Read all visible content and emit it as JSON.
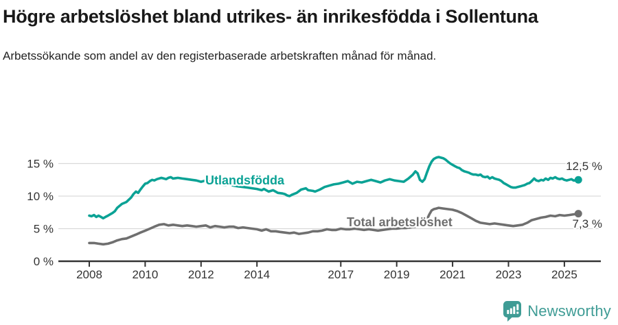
{
  "chart_data": {
    "type": "line",
    "title": "Högre arbetslöshet bland utrikes- än inrikesfödda i Sollentuna",
    "subtitle": "Arbetssökande som andel av den registerbaserade arbetskraften månad för månad.",
    "grid": "horizontal",
    "legend_position": "inline-labels",
    "ylim": [
      0,
      17
    ],
    "xlim": [
      2006.9,
      2026.3
    ],
    "y_ticks": [
      {
        "label": "0 %",
        "value": 0
      },
      {
        "label": "5 %",
        "value": 5
      },
      {
        "label": "10 %",
        "value": 10
      },
      {
        "label": "15 %",
        "value": 15
      }
    ],
    "x_ticks": [
      {
        "label": "2008",
        "year": 2008
      },
      {
        "label": "2010",
        "year": 2010
      },
      {
        "label": "2012",
        "year": 2012
      },
      {
        "label": "2014",
        "year": 2014
      },
      {
        "label": "2017",
        "year": 2017
      },
      {
        "label": "2019",
        "year": 2019
      },
      {
        "label": "2021",
        "year": 2021
      },
      {
        "label": "2023",
        "year": 2023
      },
      {
        "label": "2025",
        "year": 2025
      }
    ],
    "series": [
      {
        "name": "Utlandsfödda",
        "color": "#0ba295",
        "end_label": "12,5 %",
        "end_value": 12.5,
        "points": [
          [
            2008,
            7
          ],
          [
            2008.08,
            6.9
          ],
          [
            2008.17,
            7.1
          ],
          [
            2008.25,
            6.8
          ],
          [
            2008.33,
            7
          ],
          [
            2008.42,
            6.8
          ],
          [
            2008.5,
            6.6
          ],
          [
            2008.58,
            6.8
          ],
          [
            2008.67,
            7
          ],
          [
            2008.75,
            7.2
          ],
          [
            2008.83,
            7.4
          ],
          [
            2008.92,
            7.7
          ],
          [
            2009,
            8.2
          ],
          [
            2009.17,
            8.8
          ],
          [
            2009.33,
            9.1
          ],
          [
            2009.5,
            9.8
          ],
          [
            2009.58,
            10.3
          ],
          [
            2009.67,
            10.7
          ],
          [
            2009.75,
            10.5
          ],
          [
            2009.83,
            11
          ],
          [
            2009.92,
            11.5
          ],
          [
            2010,
            11.9
          ],
          [
            2010.08,
            12
          ],
          [
            2010.17,
            12.3
          ],
          [
            2010.25,
            12.5
          ],
          [
            2010.33,
            12.4
          ],
          [
            2010.42,
            12.6
          ],
          [
            2010.58,
            12.8
          ],
          [
            2010.67,
            12.7
          ],
          [
            2010.75,
            12.6
          ],
          [
            2010.83,
            12.8
          ],
          [
            2010.92,
            12.9
          ],
          [
            2011,
            12.7
          ],
          [
            2011.17,
            12.8
          ],
          [
            2011.33,
            12.7
          ],
          [
            2011.5,
            12.6
          ],
          [
            2011.67,
            12.5
          ],
          [
            2011.83,
            12.4
          ],
          [
            2012,
            12.2
          ],
          [
            2012.17,
            12.4
          ],
          [
            2012.33,
            12.2
          ],
          [
            2012.5,
            12
          ],
          [
            2012.67,
            11.9
          ],
          [
            2012.83,
            11.7
          ],
          [
            2013,
            11.8
          ],
          [
            2013.17,
            11.6
          ],
          [
            2013.33,
            11.5
          ],
          [
            2013.5,
            11.4
          ],
          [
            2013.67,
            11.3
          ],
          [
            2013.83,
            11.2
          ],
          [
            2014,
            11.1
          ],
          [
            2014.17,
            10.9
          ],
          [
            2014.25,
            11.1
          ],
          [
            2014.42,
            10.7
          ],
          [
            2014.58,
            10.9
          ],
          [
            2014.75,
            10.5
          ],
          [
            2014.92,
            10.4
          ],
          [
            2015,
            10.3
          ],
          [
            2015.08,
            10.1
          ],
          [
            2015.17,
            10
          ],
          [
            2015.25,
            10.2
          ],
          [
            2015.42,
            10.5
          ],
          [
            2015.58,
            11
          ],
          [
            2015.75,
            11.2
          ],
          [
            2015.83,
            10.9
          ],
          [
            2016,
            10.8
          ],
          [
            2016.08,
            10.7
          ],
          [
            2016.25,
            11
          ],
          [
            2016.42,
            11.4
          ],
          [
            2016.58,
            11.6
          ],
          [
            2016.75,
            11.8
          ],
          [
            2016.92,
            11.9
          ],
          [
            2017.08,
            12.1
          ],
          [
            2017.25,
            12.3
          ],
          [
            2017.42,
            11.9
          ],
          [
            2017.58,
            12.2
          ],
          [
            2017.75,
            12.1
          ],
          [
            2017.92,
            12.3
          ],
          [
            2018.08,
            12.5
          ],
          [
            2018.25,
            12.3
          ],
          [
            2018.42,
            12.1
          ],
          [
            2018.58,
            12.4
          ],
          [
            2018.75,
            12.6
          ],
          [
            2018.92,
            12.4
          ],
          [
            2019.08,
            12.3
          ],
          [
            2019.25,
            12.2
          ],
          [
            2019.42,
            12.7
          ],
          [
            2019.58,
            13.3
          ],
          [
            2019.67,
            13.8
          ],
          [
            2019.75,
            13.5
          ],
          [
            2019.83,
            12.5
          ],
          [
            2019.92,
            12.2
          ],
          [
            2020,
            12.6
          ],
          [
            2020.08,
            13.6
          ],
          [
            2020.17,
            14.6
          ],
          [
            2020.25,
            15.3
          ],
          [
            2020.33,
            15.7
          ],
          [
            2020.42,
            15.9
          ],
          [
            2020.5,
            16
          ],
          [
            2020.58,
            15.9
          ],
          [
            2020.67,
            15.8
          ],
          [
            2020.75,
            15.6
          ],
          [
            2020.83,
            15.3
          ],
          [
            2020.92,
            15
          ],
          [
            2021,
            14.8
          ],
          [
            2021.08,
            14.6
          ],
          [
            2021.17,
            14.4
          ],
          [
            2021.25,
            14.3
          ],
          [
            2021.33,
            14
          ],
          [
            2021.42,
            13.8
          ],
          [
            2021.5,
            13.7
          ],
          [
            2021.58,
            13.6
          ],
          [
            2021.67,
            13.4
          ],
          [
            2021.75,
            13.3
          ],
          [
            2021.83,
            13.3
          ],
          [
            2021.92,
            13.2
          ],
          [
            2022,
            13.3
          ],
          [
            2022.08,
            13
          ],
          [
            2022.17,
            12.9
          ],
          [
            2022.25,
            13
          ],
          [
            2022.33,
            12.7
          ],
          [
            2022.42,
            12.9
          ],
          [
            2022.5,
            12.7
          ],
          [
            2022.58,
            12.6
          ],
          [
            2022.67,
            12.5
          ],
          [
            2022.75,
            12.3
          ],
          [
            2022.83,
            12
          ],
          [
            2022.92,
            11.8
          ],
          [
            2023,
            11.6
          ],
          [
            2023.08,
            11.4
          ],
          [
            2023.17,
            11.3
          ],
          [
            2023.25,
            11.3
          ],
          [
            2023.33,
            11.4
          ],
          [
            2023.42,
            11.5
          ],
          [
            2023.5,
            11.6
          ],
          [
            2023.58,
            11.7
          ],
          [
            2023.67,
            11.9
          ],
          [
            2023.75,
            12
          ],
          [
            2023.83,
            12.3
          ],
          [
            2023.92,
            12.7
          ],
          [
            2024,
            12.4
          ],
          [
            2024.08,
            12.3
          ],
          [
            2024.17,
            12.5
          ],
          [
            2024.25,
            12.4
          ],
          [
            2024.33,
            12.7
          ],
          [
            2024.42,
            12.5
          ],
          [
            2024.5,
            12.8
          ],
          [
            2024.58,
            12.7
          ],
          [
            2024.67,
            12.9
          ],
          [
            2024.75,
            12.7
          ],
          [
            2024.83,
            12.6
          ],
          [
            2024.92,
            12.7
          ],
          [
            2025,
            12.5
          ],
          [
            2025.08,
            12.4
          ],
          [
            2025.17,
            12.5
          ],
          [
            2025.25,
            12.6
          ],
          [
            2025.33,
            12.4
          ],
          [
            2025.42,
            12.4
          ],
          [
            2025.5,
            12.5
          ]
        ]
      },
      {
        "name": "Total arbetslöshet",
        "color": "#6f6f6f",
        "end_label": "7,3 %",
        "end_value": 7.3,
        "points": [
          [
            2008,
            2.8
          ],
          [
            2008.17,
            2.8
          ],
          [
            2008.33,
            2.7
          ],
          [
            2008.5,
            2.6
          ],
          [
            2008.67,
            2.7
          ],
          [
            2008.83,
            2.9
          ],
          [
            2009,
            3.2
          ],
          [
            2009.17,
            3.4
          ],
          [
            2009.33,
            3.5
          ],
          [
            2009.5,
            3.8
          ],
          [
            2009.67,
            4.1
          ],
          [
            2009.83,
            4.4
          ],
          [
            2010,
            4.7
          ],
          [
            2010.17,
            5
          ],
          [
            2010.33,
            5.3
          ],
          [
            2010.5,
            5.6
          ],
          [
            2010.67,
            5.7
          ],
          [
            2010.83,
            5.5
          ],
          [
            2011,
            5.6
          ],
          [
            2011.17,
            5.5
          ],
          [
            2011.33,
            5.4
          ],
          [
            2011.5,
            5.5
          ],
          [
            2011.67,
            5.4
          ],
          [
            2011.83,
            5.3
          ],
          [
            2012,
            5.4
          ],
          [
            2012.17,
            5.5
          ],
          [
            2012.33,
            5.2
          ],
          [
            2012.5,
            5.4
          ],
          [
            2012.67,
            5.3
          ],
          [
            2012.83,
            5.2
          ],
          [
            2013,
            5.3
          ],
          [
            2013.17,
            5.3
          ],
          [
            2013.33,
            5.1
          ],
          [
            2013.5,
            5.2
          ],
          [
            2013.67,
            5.1
          ],
          [
            2013.83,
            5
          ],
          [
            2014,
            4.9
          ],
          [
            2014.17,
            4.7
          ],
          [
            2014.33,
            4.9
          ],
          [
            2014.5,
            4.6
          ],
          [
            2014.67,
            4.6
          ],
          [
            2014.83,
            4.5
          ],
          [
            2015,
            4.4
          ],
          [
            2015.17,
            4.3
          ],
          [
            2015.33,
            4.4
          ],
          [
            2015.5,
            4.2
          ],
          [
            2015.67,
            4.3
          ],
          [
            2015.83,
            4.4
          ],
          [
            2016,
            4.6
          ],
          [
            2016.17,
            4.6
          ],
          [
            2016.33,
            4.7
          ],
          [
            2016.5,
            4.9
          ],
          [
            2016.67,
            4.8
          ],
          [
            2016.83,
            4.8
          ],
          [
            2017,
            5
          ],
          [
            2017.17,
            4.9
          ],
          [
            2017.33,
            4.9
          ],
          [
            2017.5,
            5
          ],
          [
            2017.67,
            4.9
          ],
          [
            2017.83,
            4.8
          ],
          [
            2018,
            4.9
          ],
          [
            2018.17,
            4.8
          ],
          [
            2018.33,
            4.7
          ],
          [
            2018.5,
            4.8
          ],
          [
            2018.67,
            4.9
          ],
          [
            2018.83,
            5
          ],
          [
            2019,
            5
          ],
          [
            2019.17,
            5.1
          ],
          [
            2019.33,
            5.1
          ],
          [
            2019.5,
            5.2
          ],
          [
            2019.67,
            5.3
          ],
          [
            2019.83,
            5.5
          ],
          [
            2020,
            5.9
          ],
          [
            2020.08,
            6.4
          ],
          [
            2020.17,
            7.2
          ],
          [
            2020.25,
            7.8
          ],
          [
            2020.33,
            8
          ],
          [
            2020.42,
            8.1
          ],
          [
            2020.5,
            8.2
          ],
          [
            2020.67,
            8.1
          ],
          [
            2020.83,
            8
          ],
          [
            2021,
            7.9
          ],
          [
            2021.17,
            7.7
          ],
          [
            2021.33,
            7.4
          ],
          [
            2021.5,
            7
          ],
          [
            2021.67,
            6.6
          ],
          [
            2021.83,
            6.2
          ],
          [
            2022,
            5.9
          ],
          [
            2022.17,
            5.8
          ],
          [
            2022.33,
            5.7
          ],
          [
            2022.5,
            5.8
          ],
          [
            2022.67,
            5.7
          ],
          [
            2022.83,
            5.6
          ],
          [
            2023,
            5.5
          ],
          [
            2023.17,
            5.4
          ],
          [
            2023.33,
            5.5
          ],
          [
            2023.5,
            5.6
          ],
          [
            2023.67,
            5.9
          ],
          [
            2023.83,
            6.3
          ],
          [
            2024,
            6.5
          ],
          [
            2024.17,
            6.7
          ],
          [
            2024.33,
            6.8
          ],
          [
            2024.5,
            7
          ],
          [
            2024.67,
            6.9
          ],
          [
            2024.83,
            7.1
          ],
          [
            2025,
            7
          ],
          [
            2025.17,
            7.1
          ],
          [
            2025.33,
            7.2
          ],
          [
            2025.5,
            7.3
          ]
        ]
      }
    ]
  },
  "footer": {
    "brand": "Newsworthy",
    "brand_color": "#3f9c95"
  }
}
